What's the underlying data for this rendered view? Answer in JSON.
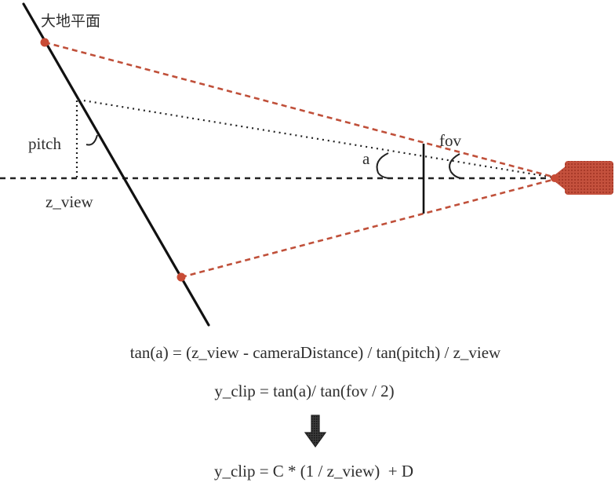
{
  "labels": {
    "ground_plane": "大地平面",
    "pitch": "pitch",
    "z_view": "z_view",
    "angle_a": "a",
    "fov": "fov"
  },
  "formulas": {
    "tan_a": "tan(a) = (z_view - cameraDistance) / tan(pitch) / z_view",
    "y_clip_tan": "y_clip = tan(a)/ tan(fov / 2)",
    "y_clip_final": "y_clip = C * (1 / z_view)  + D"
  },
  "colors": {
    "ray": "#c0503a",
    "point": "#c84b35",
    "camera": "#c4513d",
    "line": "#111111"
  },
  "icons": {
    "camera": "camera-icon",
    "arrow": "down-arrow-icon"
  }
}
